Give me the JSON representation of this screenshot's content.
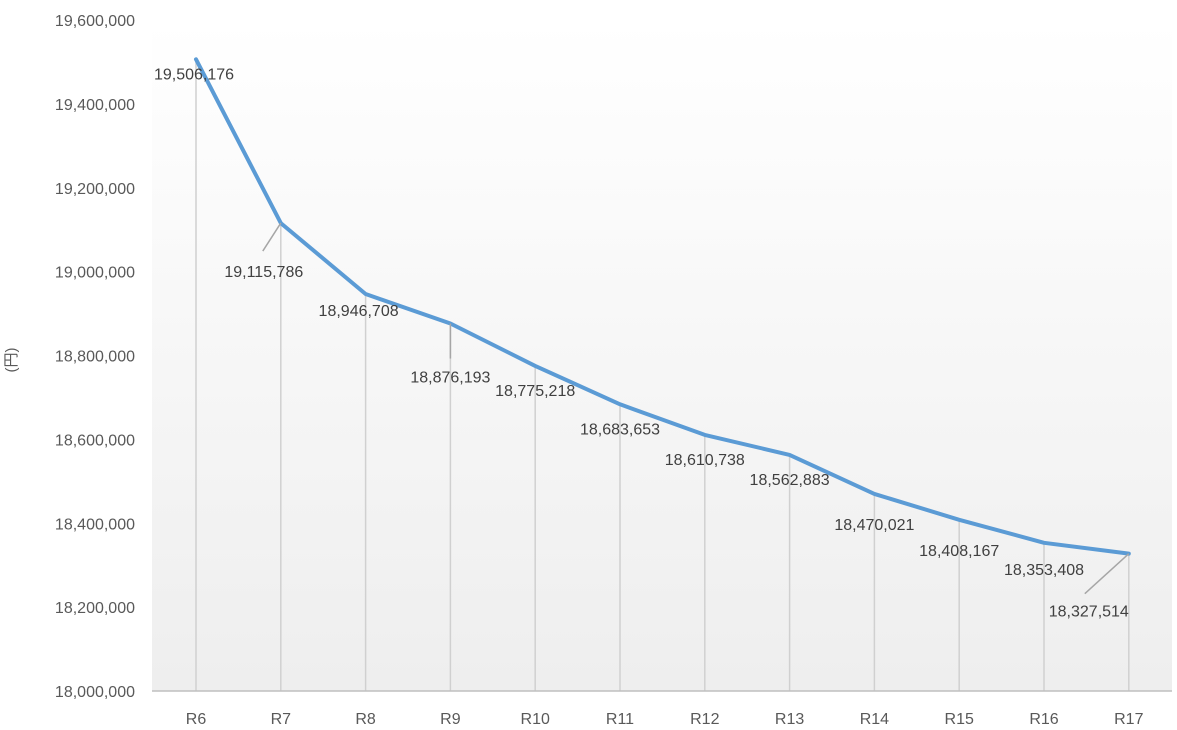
{
  "chart_data": {
    "type": "line",
    "title": "",
    "xlabel": "",
    "ylabel": "(円)",
    "categories": [
      "R6",
      "R7",
      "R8",
      "R9",
      "R10",
      "R11",
      "R12",
      "R13",
      "R14",
      "R15",
      "R16",
      "R17"
    ],
    "series": [
      {
        "values": [
          19506176,
          19115786,
          18946708,
          18876193,
          18775218,
          18683653,
          18610738,
          18562883,
          18470021,
          18408167,
          18353408,
          18327514
        ]
      }
    ],
    "data_labels": [
      "19,506,176",
      "19,115,786",
      "18,946,708",
      "18,876,193",
      "18,775,218",
      "18,683,653",
      "18,610,738",
      "18,562,883",
      "18,470,021",
      "18,408,167",
      "18,353,408",
      "18,327,514"
    ],
    "ylim": [
      18000000,
      19600000
    ],
    "yticks": [
      "18,000,000",
      "18,200,000",
      "18,400,000",
      "18,600,000",
      "18,800,000",
      "19,000,000",
      "19,200,000",
      "19,400,000",
      "19,600,000"
    ],
    "grid": false,
    "drop_lines": true,
    "colors": {
      "line": "#5B9BD5",
      "drop_line": "#D0D0D0",
      "axis": "#BFBFBF",
      "leader": "#A6A6A6"
    }
  }
}
